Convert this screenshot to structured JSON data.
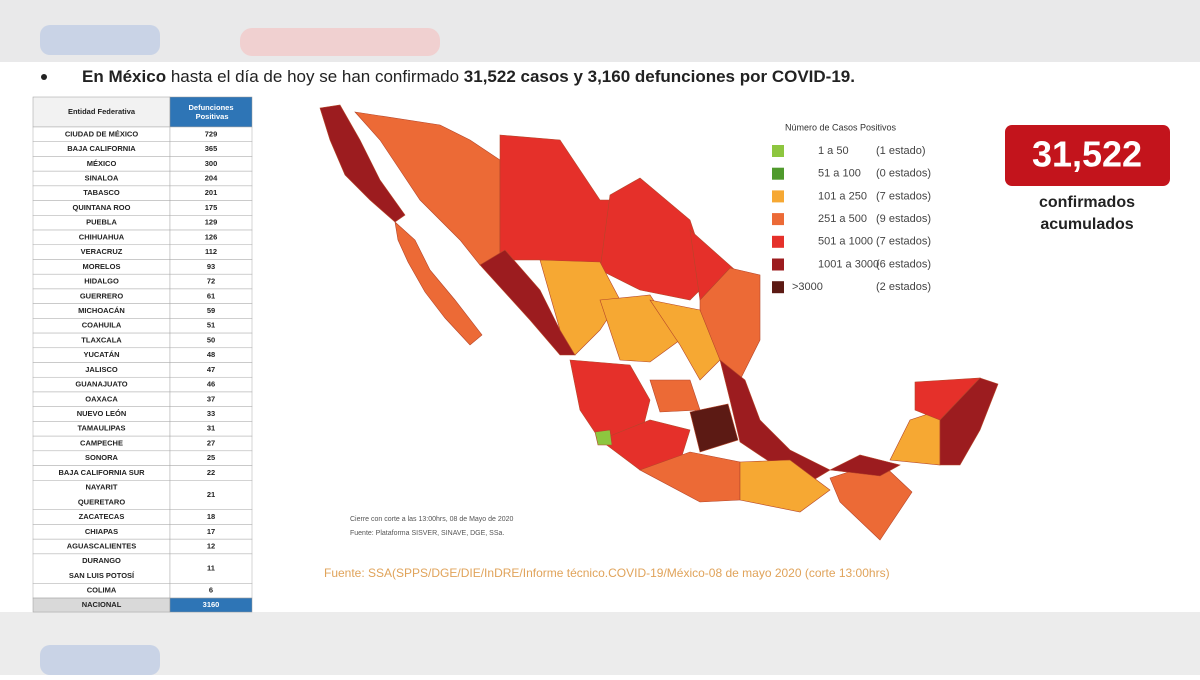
{
  "headline": {
    "part1": "En México",
    "part2": " hasta el día de hoy se han confirmado ",
    "part3": "31,522 casos y 3,160 defunciones por COVID-19."
  },
  "table": {
    "headers": [
      "Entidad Federativa",
      "Defunciones Positivas"
    ],
    "rows": [
      {
        "entities": [
          "CIUDAD DE MÉXICO"
        ],
        "deaths": 729
      },
      {
        "entities": [
          "BAJA CALIFORNIA"
        ],
        "deaths": 365
      },
      {
        "entities": [
          "MÉXICO"
        ],
        "deaths": 300
      },
      {
        "entities": [
          "SINALOA"
        ],
        "deaths": 204
      },
      {
        "entities": [
          "TABASCO"
        ],
        "deaths": 201
      },
      {
        "entities": [
          "QUINTANA ROO"
        ],
        "deaths": 175
      },
      {
        "entities": [
          "PUEBLA"
        ],
        "deaths": 129
      },
      {
        "entities": [
          "CHIHUAHUA"
        ],
        "deaths": 126
      },
      {
        "entities": [
          "VERACRUZ"
        ],
        "deaths": 112
      },
      {
        "entities": [
          "MORELOS"
        ],
        "deaths": 93
      },
      {
        "entities": [
          "HIDALGO"
        ],
        "deaths": 72
      },
      {
        "entities": [
          "GUERRERO"
        ],
        "deaths": 61
      },
      {
        "entities": [
          "MICHOACÁN"
        ],
        "deaths": 59
      },
      {
        "entities": [
          "COAHUILA"
        ],
        "deaths": 51
      },
      {
        "entities": [
          "TLAXCALA"
        ],
        "deaths": 50
      },
      {
        "entities": [
          "YUCATÁN"
        ],
        "deaths": 48
      },
      {
        "entities": [
          "JALISCO"
        ],
        "deaths": 47
      },
      {
        "entities": [
          "GUANAJUATO"
        ],
        "deaths": 46
      },
      {
        "entities": [
          "OAXACA"
        ],
        "deaths": 37
      },
      {
        "entities": [
          "NUEVO LEÓN"
        ],
        "deaths": 33
      },
      {
        "entities": [
          "TAMAULIPAS"
        ],
        "deaths": 31
      },
      {
        "entities": [
          "CAMPECHE"
        ],
        "deaths": 27
      },
      {
        "entities": [
          "SONORA"
        ],
        "deaths": 25
      },
      {
        "entities": [
          "BAJA CALIFORNIA SUR"
        ],
        "deaths": 22
      },
      {
        "entities": [
          "NAYARIT",
          "QUERETARO"
        ],
        "deaths": 21
      },
      {
        "entities": [
          "ZACATECAS"
        ],
        "deaths": 18
      },
      {
        "entities": [
          "CHIAPAS"
        ],
        "deaths": 17
      },
      {
        "entities": [
          "AGUASCALIENTES"
        ],
        "deaths": 12
      },
      {
        "entities": [
          "DURANGO",
          "SAN LUIS POTOSÍ"
        ],
        "deaths": 11
      },
      {
        "entities": [
          "COLIMA"
        ],
        "deaths": 6
      }
    ],
    "total": {
      "label": "NACIONAL",
      "deaths": 3160
    }
  },
  "legend": {
    "title": "Número de Casos Positivos",
    "items": [
      {
        "range": "1 a 50",
        "count": "(1 estado)",
        "color": "#8dc63f"
      },
      {
        "range": "51 a 100",
        "count": "(0 estados)",
        "color": "#4f9a2c"
      },
      {
        "range": "101 a 250",
        "count": "(7 estados)",
        "color": "#f6a833"
      },
      {
        "range": "251 a 500",
        "count": "(9 estados)",
        "color": "#ec6a36"
      },
      {
        "range": "501 a 1000",
        "count": "(7 estados)",
        "color": "#e5302a"
      },
      {
        "range": "1001 a 3000",
        "count": "(6 estados)",
        "color": "#9c1c1f"
      },
      {
        "range": ">3000",
        "count": "(2 estados)",
        "color": "#5c1a14"
      }
    ]
  },
  "map_notes": [
    "Cierre con corte a las 13:00hrs, 08 de Mayo de 2020",
    "Fuente: Plataforma SISVER, SINAVE, DGE, SSa."
  ],
  "source": "Fuente: SSA(SPPS/DGE/DIE/InDRE/Informe técnico.COVID-19/México-08 de mayo 2020 (corte 13:00hrs)",
  "badge": {
    "number": "31,522",
    "caption_line1": "confirmados",
    "caption_line2": "acumulados"
  }
}
